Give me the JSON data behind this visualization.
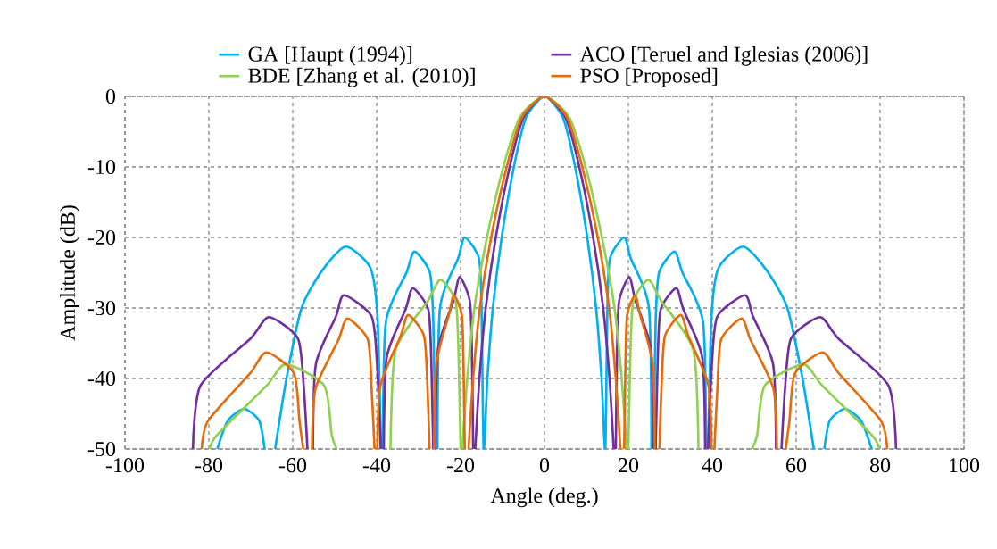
{
  "chart_data": {
    "type": "line",
    "xlabel": "Angle (deg.)",
    "ylabel": "Amplitude (dB)",
    "xlim": [
      -100,
      100
    ],
    "ylim": [
      -50,
      0
    ],
    "xticks": [
      -100,
      -80,
      -60,
      -40,
      -20,
      0,
      20,
      40,
      60,
      80,
      100
    ],
    "yticks": [
      -50,
      -40,
      -30,
      -20,
      -10,
      0
    ],
    "grid": true,
    "legend": "top",
    "line_style": "solid",
    "marker": "none",
    "series": [
      {
        "name": "GA [Haupt (1994)]",
        "color": "#00b0f0",
        "x": [
          -78,
          -75.5,
          -71.6,
          -68,
          -66.7,
          -65.5,
          -64.2,
          -61.5,
          -57.9,
          -53,
          -47.4,
          -41.5,
          -39.8,
          -39,
          -38.75,
          -38.5,
          -37.8,
          -32.9,
          -31,
          -27.3,
          -26.5,
          -26,
          -25.75,
          -25.5,
          -24.9,
          -20.6,
          -19,
          -15.6,
          -15,
          -14.5,
          -13.6,
          -12.3,
          -10.2,
          -7.3,
          -4.4,
          0,
          4.4,
          7.3,
          10.2,
          12.3,
          13.6,
          14.5,
          15,
          15.6,
          19,
          20.6,
          24.9,
          25.5,
          25.75,
          26,
          26.5,
          27.3,
          31,
          32.9,
          37.8,
          38.5,
          38.75,
          39,
          39.8,
          41.5,
          47.4,
          53,
          57.9,
          61.5,
          64.2,
          65.5,
          66.7,
          68,
          71.6,
          75.5,
          78
        ],
        "values": [
          -50,
          -46,
          -44.3,
          -46,
          -50,
          null,
          -50,
          -40,
          -30,
          -24.7,
          -21.3,
          -24.3,
          -31.3,
          -50,
          null,
          -50,
          -32,
          -25,
          -22,
          -25,
          -32,
          -50,
          null,
          -50,
          -30,
          -23,
          -20,
          -23,
          -30,
          -50,
          -40,
          -30,
          -20,
          -10,
          -3,
          0,
          -3,
          -10,
          -20,
          -30,
          -40,
          -50,
          -30,
          -23,
          -20,
          -23,
          -30,
          -50,
          null,
          -50,
          -32,
          -25,
          -22,
          -25,
          -32,
          -50,
          null,
          -50,
          -31.3,
          -24.3,
          -21.3,
          -24.7,
          -30,
          -40,
          -50,
          null,
          -50,
          -46,
          -44.3,
          -46,
          -50
        ]
      },
      {
        "name": "ACO [Teruel and Iglesias (2006)]",
        "color": "#7030a0",
        "x": [
          -83.8,
          -82,
          -70,
          -65.7,
          -58.8,
          -57.4,
          -56.5,
          -55.9,
          -55.2,
          -54.5,
          -49.7,
          -47.8,
          -41.2,
          -39.9,
          -39,
          -38.7,
          -38.3,
          -37.6,
          -33.1,
          -31.4,
          -27.7,
          -27,
          -26.5,
          -26.3,
          -26,
          -25.4,
          -21.7,
          -20.2,
          -17.8,
          -17.3,
          -17,
          -16.8,
          -16.5,
          -15.5,
          -14,
          -11.6,
          -8.3,
          -5,
          0,
          5,
          8.3,
          11.6,
          14,
          15.5,
          16.5,
          16.8,
          17,
          17.3,
          17.8,
          20.2,
          21.7,
          25.4,
          26,
          26.3,
          26.5,
          27,
          27.7,
          31.4,
          33.1,
          37.6,
          38.3,
          38.7,
          39,
          39.9,
          41.2,
          47.8,
          49.7,
          54.5,
          55.2,
          55.9,
          56.5,
          57.4,
          58.8,
          65.7,
          70,
          82,
          83.8
        ],
        "values": [
          -50,
          -41,
          -34.3,
          -31.3,
          -34.3,
          -41,
          -50,
          null,
          -50,
          -38,
          -31.2,
          -28.2,
          -31.2,
          -38,
          -50,
          null,
          -50,
          -37,
          -30.2,
          -27.2,
          -30.2,
          -37,
          -50,
          null,
          -50,
          -36,
          -29,
          -25.6,
          -29,
          -36,
          -50,
          null,
          -50,
          -40,
          -30,
          -20,
          -10,
          -3,
          0,
          -3,
          -10,
          -20,
          -30,
          -40,
          -50,
          null,
          -50,
          -36,
          -29,
          -25.6,
          -29,
          -36,
          -50,
          null,
          -50,
          -37,
          -30.2,
          -27.2,
          -30.2,
          -37,
          -50,
          null,
          -50,
          -38,
          -31.2,
          -28.2,
          -31.2,
          -38,
          -50,
          null,
          -50,
          -41,
          -34.3,
          -31.3,
          -34.3,
          -41,
          -50
        ]
      },
      {
        "name": "BDE [Zhang et al. (2010)]",
        "color": "#92d050",
        "x": [
          -79.8,
          -78,
          -66.2,
          -61.7,
          -52.5,
          -50.7,
          -49.5,
          -43,
          -36.7,
          -35.5,
          -27.8,
          -24.8,
          -21.2,
          -20.5,
          -20,
          -19.8,
          -19.6,
          -18.4,
          -16.7,
          -13.7,
          -9.8,
          -5.9,
          0,
          5.9,
          9.8,
          13.7,
          16.7,
          18.4,
          19.6,
          19.8,
          20,
          20.5,
          21.2,
          24.8,
          27.8,
          35.5,
          36.7,
          43,
          49.5,
          50.7,
          52.5,
          61.7,
          66.2,
          78,
          79.8
        ],
        "values": [
          -50,
          -48,
          -41,
          -38,
          -41,
          -48,
          -50,
          null,
          -50,
          -36,
          -29,
          -26,
          -29,
          -36,
          -50,
          null,
          -50,
          -40,
          -30,
          -20,
          -10,
          -3,
          0,
          -3,
          -10,
          -20,
          -30,
          -40,
          -50,
          null,
          -50,
          -36,
          -29,
          -26,
          -29,
          -36,
          -50,
          null,
          -50,
          -48,
          -41,
          -38,
          -41,
          -48,
          -50
        ]
      },
      {
        "name": "PSO [Proposed]",
        "color": "#e46c0a",
        "x": [
          -81.7,
          -80.2,
          -70.2,
          -66.3,
          -59.7,
          -58.4,
          -57.5,
          -56.5,
          -55.4,
          -54.6,
          -49.1,
          -47,
          -42.1,
          -41.2,
          -40.5,
          -40.2,
          -39.8,
          -39.1,
          -34.3,
          -32.5,
          -28.7,
          -27.9,
          -27.4,
          -26.9,
          -26.3,
          -25.8,
          -22.8,
          -21.6,
          -19.7,
          -19.3,
          -19,
          -18.6,
          -18.1,
          -17,
          -15.4,
          -12.7,
          -9,
          -5.4,
          0,
          5.4,
          9,
          12.7,
          15.4,
          17,
          18.1,
          18.6,
          19,
          19.3,
          19.7,
          21.6,
          22.8,
          25.8,
          26.3,
          26.9,
          27.4,
          27.9,
          28.7,
          32.5,
          34.3,
          39.1,
          39.8,
          40.2,
          40.5,
          41.2,
          42.1,
          47,
          49.1,
          54.6,
          55.4,
          56.5,
          57.5,
          58.4,
          59.7,
          66.3,
          70.2,
          80.2,
          81.7
        ],
        "values": [
          -50,
          -46,
          -39.3,
          -36.3,
          -39.3,
          -46,
          -50,
          null,
          -50,
          -41.5,
          -34.5,
          -31.5,
          -34.5,
          -41.5,
          -50,
          null,
          -50,
          -41,
          -34,
          -31,
          -34,
          -41,
          -50,
          null,
          -50,
          -38,
          -31,
          -28.2,
          -31,
          -38,
          -50,
          null,
          -50,
          -40,
          -30,
          -20,
          -10,
          -3,
          0,
          -3,
          -10,
          -20,
          -30,
          -40,
          -50,
          null,
          -50,
          -38,
          -31,
          -28.2,
          -31,
          -38,
          -50,
          null,
          -50,
          -41,
          -34,
          -31,
          -34,
          -41,
          -50,
          null,
          -50,
          -41.5,
          -34.5,
          -31.5,
          -34.5,
          -41.5,
          -50,
          null,
          -50,
          -46,
          -39.3,
          -36.3,
          -39.3,
          -46,
          -50
        ]
      }
    ]
  }
}
